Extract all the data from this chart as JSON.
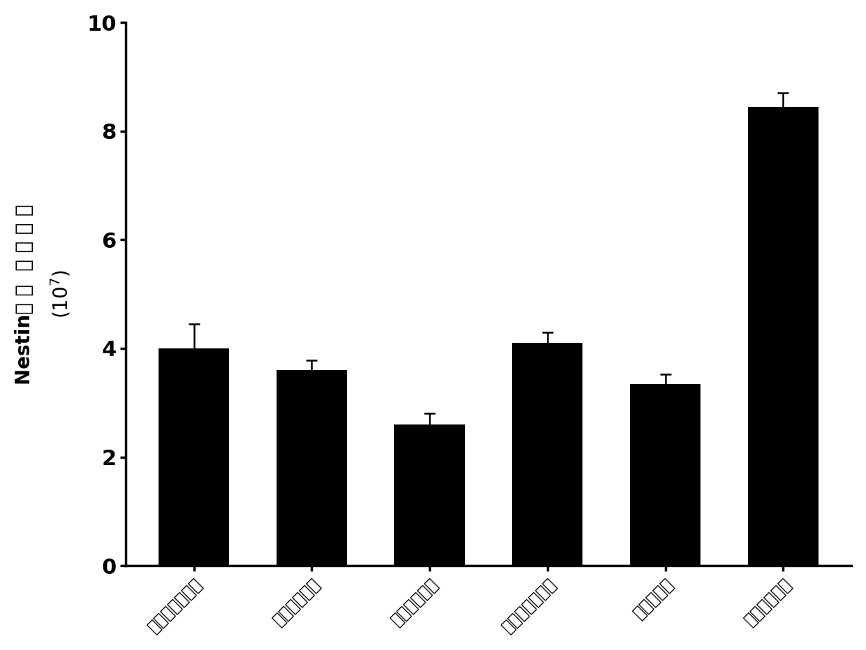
{
  "categories": [
    "普通海藻酸钠组",
    "常规钙浓度组",
    "无明胶微球组",
    "无硫酸软骨素组",
    "静态培养组",
    "模拟微环境组"
  ],
  "values": [
    4.0,
    3.6,
    2.6,
    4.1,
    3.35,
    8.45
  ],
  "errors": [
    0.45,
    0.18,
    0.2,
    0.2,
    0.18,
    0.25
  ],
  "bar_color": "#000000",
  "error_color": "#000000",
  "ylim": [
    0,
    10
  ],
  "yticks": [
    0,
    2,
    4,
    6,
    8,
    10
  ],
  "background_color": "#ffffff",
  "bar_width": 0.6,
  "figsize": [
    12.4,
    9.31
  ],
  "dpi": 100,
  "ylabel_latin": "Nestin",
  "ylabel_chinese": "阳 性  细 胞 总 数",
  "ylabel_unit": "(10⁷)"
}
